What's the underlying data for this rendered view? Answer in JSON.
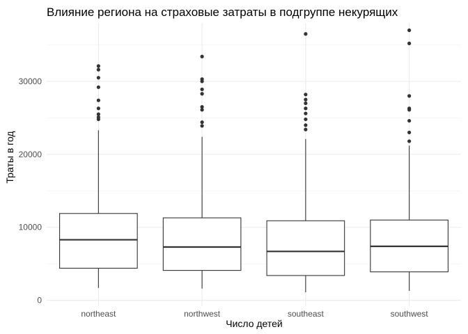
{
  "chart_data": {
    "type": "boxplot",
    "title": "Влияние региона на страховые затраты в подгруппе некурящих",
    "xlabel": "Число детей",
    "ylabel": "Траты в год",
    "ylim": [
      -800,
      38000
    ],
    "yticks": [
      0,
      10000,
      20000,
      30000
    ],
    "ytick_labels": [
      "0",
      "10000",
      "20000",
      "30000"
    ],
    "grid": true,
    "categories": [
      "northeast",
      "northwest",
      "southeast",
      "southwest"
    ],
    "boxes": [
      {
        "category": "northeast",
        "whisker_low": 1700,
        "q1": 4400,
        "median": 8300,
        "q3": 11900,
        "whisker_high": 23300,
        "outliers": [
          24800,
          25100,
          25500,
          26300,
          27400,
          29200,
          30500,
          31600,
          32100
        ]
      },
      {
        "category": "northwest",
        "whisker_low": 1600,
        "q1": 4100,
        "median": 7300,
        "q3": 11300,
        "whisker_high": 22400,
        "outliers": [
          23900,
          24400,
          26100,
          26500,
          28300,
          28900,
          30000,
          30300,
          33400
        ]
      },
      {
        "category": "southeast",
        "whisker_low": 1100,
        "q1": 3400,
        "median": 6700,
        "q3": 10900,
        "whisker_high": 22100,
        "outliers": [
          23400,
          24000,
          24800,
          25600,
          26300,
          27000,
          27500,
          28200,
          36500
        ]
      },
      {
        "category": "southwest",
        "whisker_low": 1300,
        "q1": 3900,
        "median": 7400,
        "q3": 11000,
        "whisker_high": 21200,
        "outliers": [
          21800,
          23000,
          24600,
          26100,
          26300,
          28000,
          35200,
          37000
        ]
      }
    ]
  },
  "colors": {
    "background": "#ffffff",
    "grid_major": "#ebebeb",
    "grid_minor": "#f2f2f2",
    "box_stroke": "#333333",
    "tick_text": "#4d4d4d",
    "text": "#000000"
  }
}
